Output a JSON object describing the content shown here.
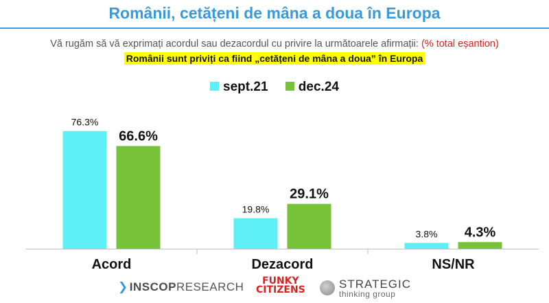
{
  "header": {
    "title": "Românii, cetățeni de mâna a doua în Europa",
    "question": "Vă rugăm să vă exprimați acordul sau dezacordul cu privire la următoarele afirmații:",
    "question_note": "(% total eșantion)",
    "statement": "Românii sunt priviți ca fiind „cetățeni de mâna a doua” în Europa"
  },
  "colors": {
    "title": "#3a9ad9",
    "sept21": "#5ff0f5",
    "dec24": "#78c23a"
  },
  "chart_data": {
    "type": "bar",
    "categories": [
      "Acord",
      "Dezacord",
      "NS/NR"
    ],
    "series": [
      {
        "name": "sept.21",
        "values": [
          76.3,
          19.8,
          3.8
        ],
        "labels": [
          "76.3%",
          "19.8%",
          "3.8%"
        ]
      },
      {
        "name": "dec.24",
        "values": [
          66.6,
          29.1,
          4.3
        ],
        "labels": [
          "66.6%",
          "29.1%",
          "4.3%"
        ]
      }
    ],
    "ylim": [
      0,
      90
    ],
    "grid": false,
    "legend": "top-center"
  },
  "footer": {
    "logo_inscop_mark": "❯",
    "logo_inscop_strong": "INSCOP",
    "logo_inscop_rest": "RESEARCH",
    "logo_funky_line1": "FUNKY",
    "logo_funky_line2": "CITIZENS",
    "logo_strategic_top": "STRATEGIC",
    "logo_strategic_bottom": "thinking group"
  }
}
